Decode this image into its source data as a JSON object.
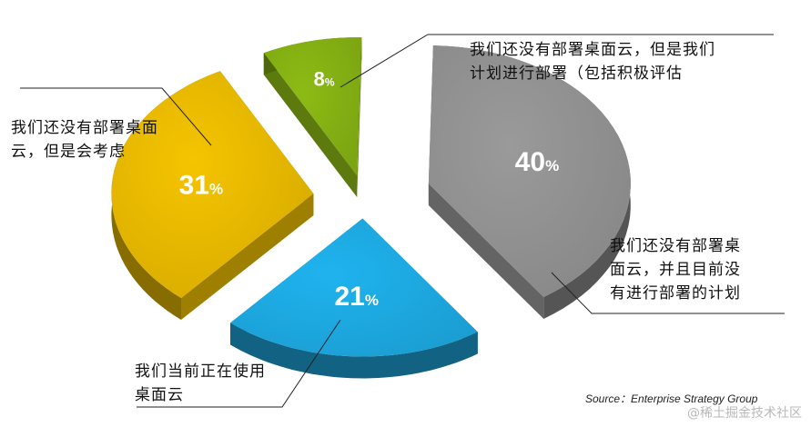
{
  "chart_data": {
    "type": "pie",
    "title": "",
    "source": "Source：Enterprise Strategy Group",
    "slices": [
      {
        "label": "我们还没有部署桌面云，但是我们计划进行部署（包括积极评估",
        "value": 8,
        "display": "8",
        "color": "#8dbb14"
      },
      {
        "label": "我们还没有部署桌面云，并且目前没有进行部署的计划",
        "value": 40,
        "display": "40",
        "color": "#9a9a9a"
      },
      {
        "label": "我们当前正在使用桌面云",
        "value": 21,
        "display": "21",
        "color": "#1fb3ef"
      },
      {
        "label": "我们还没有部署桌面云，但是会考虑",
        "value": 31,
        "display": "31",
        "color": "#f5c400"
      }
    ],
    "percent_symbol": "%"
  },
  "callouts": {
    "green_line1": "我们还没有部署桌面云，但是我们",
    "green_line2": "计划进行部署（包括积极评估",
    "yellow_line1": "我们还没有部署桌面",
    "yellow_line2": "云，但是会考虑",
    "gray_line1": "我们还没有部署桌",
    "gray_line2": "面云，并且目前没",
    "gray_line3": "有进行部署的计划",
    "blue_line1": "我们当前正在使用",
    "blue_line2": "桌面云"
  },
  "watermark": "@稀土掘金技术社区"
}
